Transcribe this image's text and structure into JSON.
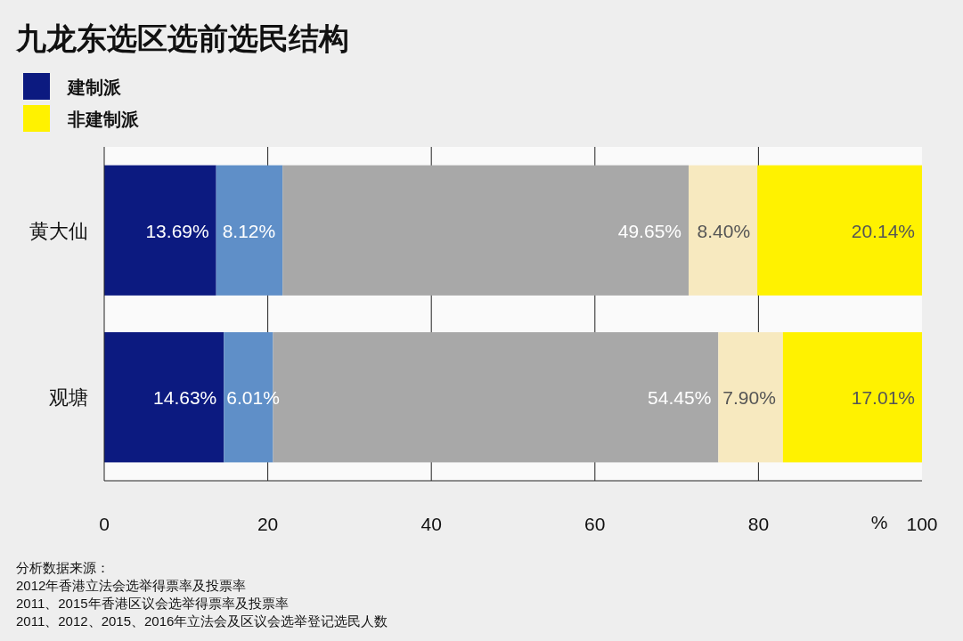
{
  "chart_data": {
    "type": "bar",
    "orientation": "horizontal",
    "stacked": true,
    "title": "九龙东选区选前选民结构",
    "categories": [
      "黄大仙",
      "观塘"
    ],
    "series": [
      {
        "name": "建制派",
        "color": "#0c1a80",
        "values": [
          13.69,
          14.63
        ],
        "value_labels": [
          "13.69%",
          "14.63%"
        ]
      },
      {
        "color": "#5f8fc8",
        "values": [
          8.12,
          6.01
        ],
        "value_labels": [
          "8.12%",
          "6.01%"
        ]
      },
      {
        "color": "#a8a8a8",
        "values": [
          49.65,
          54.45
        ],
        "value_labels": [
          "49.65%",
          "54.45%"
        ]
      },
      {
        "color": "#f7e9bf",
        "values": [
          8.4,
          7.9
        ],
        "value_labels": [
          "8.40%",
          "7.90%"
        ]
      },
      {
        "name": "非建制派",
        "color": "#fff200",
        "values": [
          20.14,
          17.01
        ],
        "value_labels": [
          "20.14%",
          "17.01%"
        ]
      }
    ],
    "xlim": [
      0,
      100
    ],
    "xticks": [
      0,
      20,
      40,
      60,
      80,
      100
    ],
    "xlabel": "%",
    "grid": "x",
    "legend": "top left",
    "annotations": [
      "分析数据来源：",
      "2012年香港立法会选举得票率及投票率",
      "2011、2015年香港区议会选举得票率及投票率",
      "2011、2012、2015、2016年立法会及区议会选举登记选民人数"
    ]
  }
}
